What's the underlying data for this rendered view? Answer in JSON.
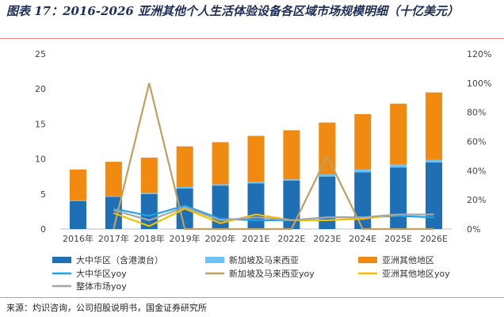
{
  "title": "图表 17：2016-2026 亚洲其他个人生活体验设备各区域市场规模明细（十亿美元）",
  "source": "来源：灼识咨询，公司招股说明书，国金证券研究所",
  "chart_data": {
    "type": "bar",
    "stacked": true,
    "categories": [
      "2016年",
      "2017年",
      "2018年",
      "2019年",
      "2020年",
      "2021E",
      "2022E",
      "2023E",
      "2024E",
      "2025E",
      "2026E"
    ],
    "ylim": [
      0,
      25
    ],
    "y_ticks": [
      "0",
      "5",
      "10",
      "15",
      "20",
      "25"
    ],
    "y2lim": [
      0,
      1.2
    ],
    "y2_ticks": [
      "0%",
      "20%",
      "40%",
      "60%",
      "80%",
      "100%",
      "120%"
    ],
    "grid": false,
    "legend_position": "bottom",
    "series": [
      {
        "name": "大中华区（含港澳台）",
        "kind": "bar",
        "color": "#1f6fb4",
        "values": [
          4.0,
          4.6,
          5.0,
          5.8,
          6.2,
          6.5,
          6.9,
          7.5,
          8.1,
          8.8,
          9.5
        ]
      },
      {
        "name": "新加坡及马来西亚",
        "kind": "bar",
        "color": "#6ec1f0",
        "values": [
          0.1,
          0.1,
          0.2,
          0.2,
          0.2,
          0.2,
          0.2,
          0.3,
          0.4,
          0.4,
          0.4
        ]
      },
      {
        "name": "亚洲其他地区",
        "kind": "bar",
        "color": "#f08a10",
        "values": [
          4.4,
          4.9,
          5.0,
          5.8,
          6.0,
          6.6,
          7.0,
          7.4,
          7.9,
          8.7,
          9.6
        ]
      },
      {
        "name": "大中华区yoy",
        "kind": "line",
        "color": "#1fa3e8",
        "values": [
          null,
          0.14,
          0.09,
          0.16,
          0.07,
          0.06,
          0.06,
          0.08,
          0.08,
          0.09,
          0.08
        ]
      },
      {
        "name": "新加坡及马来西亚yoy",
        "kind": "line",
        "color": "#c0a060",
        "values": [
          null,
          0.0,
          1.0,
          0.0,
          0.0,
          0.0,
          0.0,
          0.5,
          0.0,
          0.0,
          0.0
        ]
      },
      {
        "name": "亚洲其他地区yoy",
        "kind": "line",
        "color": "#f5c000",
        "values": [
          null,
          0.11,
          0.02,
          0.14,
          0.04,
          0.1,
          0.06,
          0.06,
          0.07,
          0.1,
          0.1
        ]
      },
      {
        "name": "整体市场yoy",
        "kind": "line",
        "color": "#a6a6a6",
        "values": [
          null,
          0.13,
          0.06,
          0.15,
          0.06,
          0.08,
          0.06,
          0.08,
          0.08,
          0.1,
          0.1
        ]
      }
    ]
  }
}
